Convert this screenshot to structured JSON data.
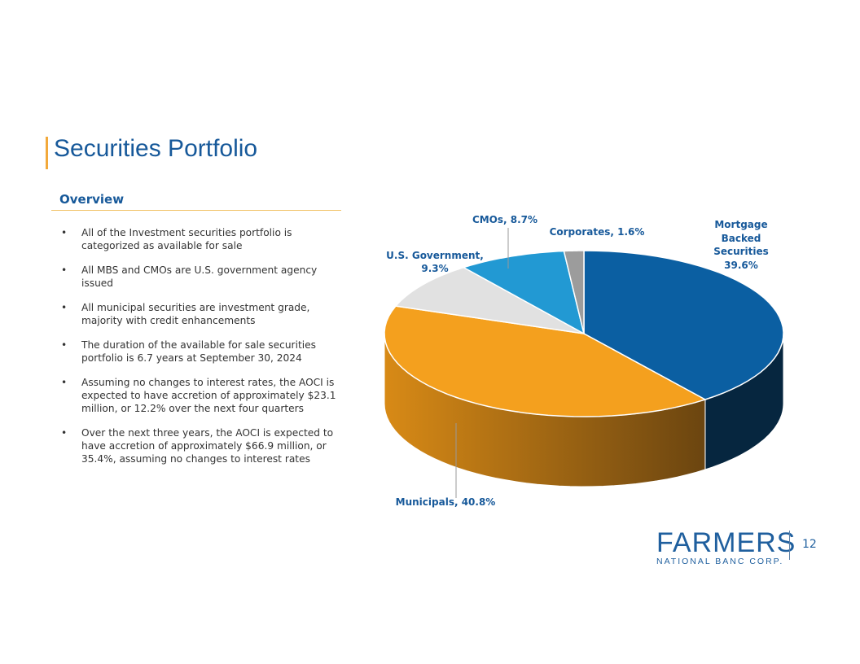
{
  "title": "Securities Portfolio",
  "overview_heading": "Overview",
  "bullets": [
    "All of the Investment securities portfolio is categorized as available for sale",
    "All MBS and CMOs are U.S. government agency issued",
    "All municipal securities are investment grade, majority with credit enhancements",
    "The duration of the available for sale securities portfolio is 6.7 years at September 30, 2024",
    "Assuming no changes to interest rates, the AOCI is expected to have accretion of approximately $23.1 million, or 12.2% over the next four quarters",
    "Over the next three years, the AOCI is expected to have accretion of approximately $66.9 million, or 35.4%, assuming no changes to interest rates"
  ],
  "chart_data": {
    "type": "pie",
    "style": "3d",
    "title": "",
    "slices": [
      {
        "name": "Mortgage Backed Securities",
        "value": 39.6,
        "label": [
          "Mortgage",
          "Backed",
          "Securities",
          "39.6%"
        ],
        "color": "#0b5fa2",
        "side": "#06263f"
      },
      {
        "name": "Municipals",
        "value": 40.8,
        "label": [
          "Municipals, 40.8%"
        ],
        "color": "#f4a01e",
        "side": "#a86a12"
      },
      {
        "name": "U.S. Government",
        "value": 9.3,
        "label": [
          "U.S. Government,",
          "9.3%"
        ],
        "color": "#e1e1e1",
        "side": "#9a9a9a"
      },
      {
        "name": "CMOs",
        "value": 8.7,
        "label": [
          "CMOs, 8.7%"
        ],
        "color": "#2299d3",
        "side": "#146088"
      },
      {
        "name": "Corporates",
        "value": 1.6,
        "label": [
          "Corporates, 1.6%"
        ],
        "color": "#9c9c9c",
        "side": "#666"
      }
    ]
  },
  "logo": {
    "main": "FARMERS",
    "sub": "NATIONAL BANC CORP."
  },
  "page_number": "12"
}
